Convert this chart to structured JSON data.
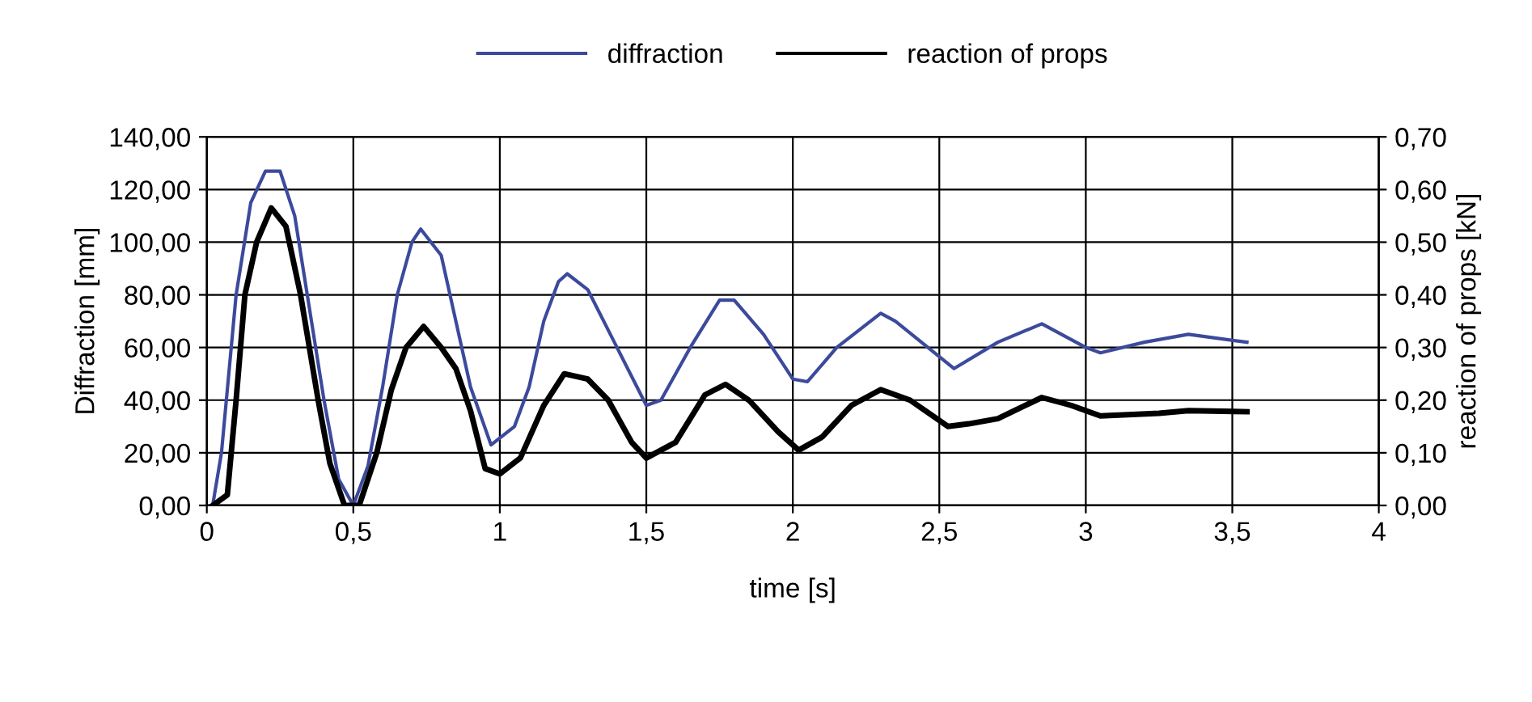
{
  "chart_data": {
    "type": "line",
    "xlabel": "time [s]",
    "ylabel": "Diffraction [mm]",
    "y2label": "reaction of props [kN]",
    "xlim": [
      0,
      4
    ],
    "xticks": [
      0,
      {
        "value": 0.5,
        "label": "0,5"
      },
      1,
      {
        "value": 1.5,
        "label": "1,5"
      },
      2,
      {
        "value": 2.5,
        "label": "2,5"
      },
      3,
      {
        "value": 3.5,
        "label": "3,5"
      },
      4
    ],
    "ylim": [
      0,
      140
    ],
    "yticks": [
      {
        "value": 0,
        "label": "0,00"
      },
      {
        "value": 20,
        "label": "20,00"
      },
      {
        "value": 40,
        "label": "40,00"
      },
      {
        "value": 60,
        "label": "60,00"
      },
      {
        "value": 80,
        "label": "80,00"
      },
      {
        "value": 100,
        "label": "100,00"
      },
      {
        "value": 120,
        "label": "120,00"
      },
      {
        "value": 140,
        "label": "140,00"
      }
    ],
    "y2lim": [
      0,
      0.7
    ],
    "y2ticks": [
      {
        "value": 0,
        "label": "0,00"
      },
      {
        "value": 0.1,
        "label": "0,10"
      },
      {
        "value": 0.2,
        "label": "0,20"
      },
      {
        "value": 0.3,
        "label": "0,30"
      },
      {
        "value": 0.4,
        "label": "0,40"
      },
      {
        "value": 0.5,
        "label": "0,50"
      },
      {
        "value": 0.6,
        "label": "0,60"
      },
      {
        "value": 0.7,
        "label": "0,70"
      }
    ],
    "grid": true,
    "legend": "top",
    "marker": "none",
    "line_style": "solid",
    "series": [
      {
        "name": "diffraction",
        "color": "#3c4a9c",
        "x": [
          0.02,
          0.05,
          0.1,
          0.15,
          0.2,
          0.25,
          0.3,
          0.35,
          0.4,
          0.45,
          0.5,
          0.55,
          0.6,
          0.65,
          0.7,
          0.73,
          0.8,
          0.85,
          0.9,
          0.97,
          1.05,
          1.1,
          1.15,
          1.2,
          1.23,
          1.3,
          1.4,
          1.5,
          1.55,
          1.65,
          1.75,
          1.8,
          1.9,
          2.0,
          2.05,
          2.15,
          2.3,
          2.35,
          2.55,
          2.7,
          2.85,
          3.0,
          3.05,
          3.2,
          3.35,
          3.55
        ],
        "values": [
          0,
          20,
          80,
          115,
          127,
          127,
          110,
          75,
          40,
          10,
          0,
          15,
          45,
          80,
          100,
          105,
          95,
          70,
          45,
          23,
          30,
          45,
          70,
          85,
          88,
          82,
          60,
          38,
          40,
          60,
          78,
          78,
          65,
          48,
          47,
          60,
          73,
          70,
          52,
          62,
          69,
          60,
          58,
          62,
          65,
          62
        ]
      },
      {
        "name": "reaction of props",
        "color": "#000000",
        "axis": "y2",
        "x": [
          0.02,
          0.07,
          0.1,
          0.13,
          0.17,
          0.22,
          0.27,
          0.32,
          0.38,
          0.42,
          0.47,
          0.52,
          0.58,
          0.63,
          0.68,
          0.74,
          0.8,
          0.85,
          0.9,
          0.95,
          1.0,
          1.07,
          1.15,
          1.22,
          1.3,
          1.37,
          1.45,
          1.5,
          1.6,
          1.7,
          1.77,
          1.85,
          1.95,
          2.02,
          2.1,
          2.2,
          2.3,
          2.4,
          2.53,
          2.6,
          2.7,
          2.85,
          2.95,
          3.05,
          3.25,
          3.35,
          3.55
        ],
        "values": [
          0,
          0.02,
          0.2,
          0.4,
          0.5,
          0.565,
          0.53,
          0.4,
          0.2,
          0.08,
          0,
          0,
          0.1,
          0.22,
          0.3,
          0.34,
          0.3,
          0.26,
          0.18,
          0.07,
          0.06,
          0.09,
          0.19,
          0.25,
          0.24,
          0.2,
          0.12,
          0.09,
          0.12,
          0.21,
          0.23,
          0.2,
          0.14,
          0.105,
          0.13,
          0.19,
          0.22,
          0.2,
          0.15,
          0.155,
          0.165,
          0.205,
          0.19,
          0.17,
          0.175,
          0.18,
          0.178
        ]
      }
    ]
  }
}
